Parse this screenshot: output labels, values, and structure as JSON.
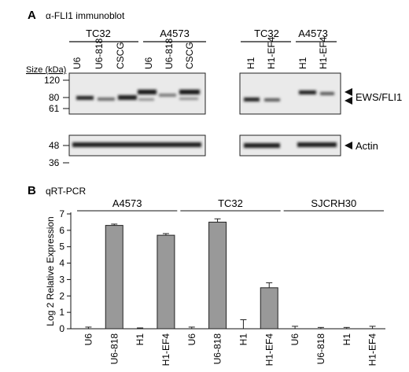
{
  "panel_a": {
    "letter": "A",
    "title": "α-FLI1 immunoblot",
    "size_label": "Size (kDa)",
    "left_blot": {
      "groups": [
        {
          "name": "TC32",
          "lanes": [
            "U6",
            "U6-818",
            "CSCG"
          ]
        },
        {
          "name": "A4573",
          "lanes": [
            "U6",
            "U6-818",
            "CSCG"
          ]
        }
      ]
    },
    "right_blot": {
      "groups": [
        {
          "name": "TC32",
          "lanes": [
            "H1",
            "H1-EF4"
          ]
        },
        {
          "name": "A4573",
          "lanes": [
            "H1",
            "H1-EF4"
          ]
        }
      ]
    },
    "size_ticks_top": [
      "120",
      "80",
      "61"
    ],
    "size_ticks_bottom": [
      "48",
      "36"
    ],
    "band_labels": {
      "top": "EWS/FLI1",
      "bottom": "Actin"
    }
  },
  "panel_b": {
    "letter": "B",
    "title": "qRT-PCR",
    "chart_data": {
      "type": "bar",
      "ylabel": "Log 2 Relative Expression",
      "xlabel": "",
      "ylim": [
        0,
        7
      ],
      "yticks": [
        0,
        1,
        2,
        3,
        4,
        5,
        6,
        7
      ],
      "groups": [
        "A4573",
        "TC32",
        "SJCRH30"
      ],
      "categories": [
        "U6",
        "U6-818",
        "H1",
        "H1-EF4",
        "U6",
        "U6-818",
        "H1",
        "H1-EF4",
        "U6",
        "U6-818",
        "H1",
        "H1-EF4"
      ],
      "values": [
        0,
        6.3,
        0,
        5.7,
        0,
        6.5,
        0,
        2.5,
        0,
        0,
        0,
        0
      ],
      "errors": [
        0.1,
        0.08,
        0.05,
        0.1,
        0.1,
        0.2,
        0.55,
        0.3,
        0.15,
        0.08,
        0.08,
        0.15
      ],
      "bar_color": "#999999"
    }
  }
}
